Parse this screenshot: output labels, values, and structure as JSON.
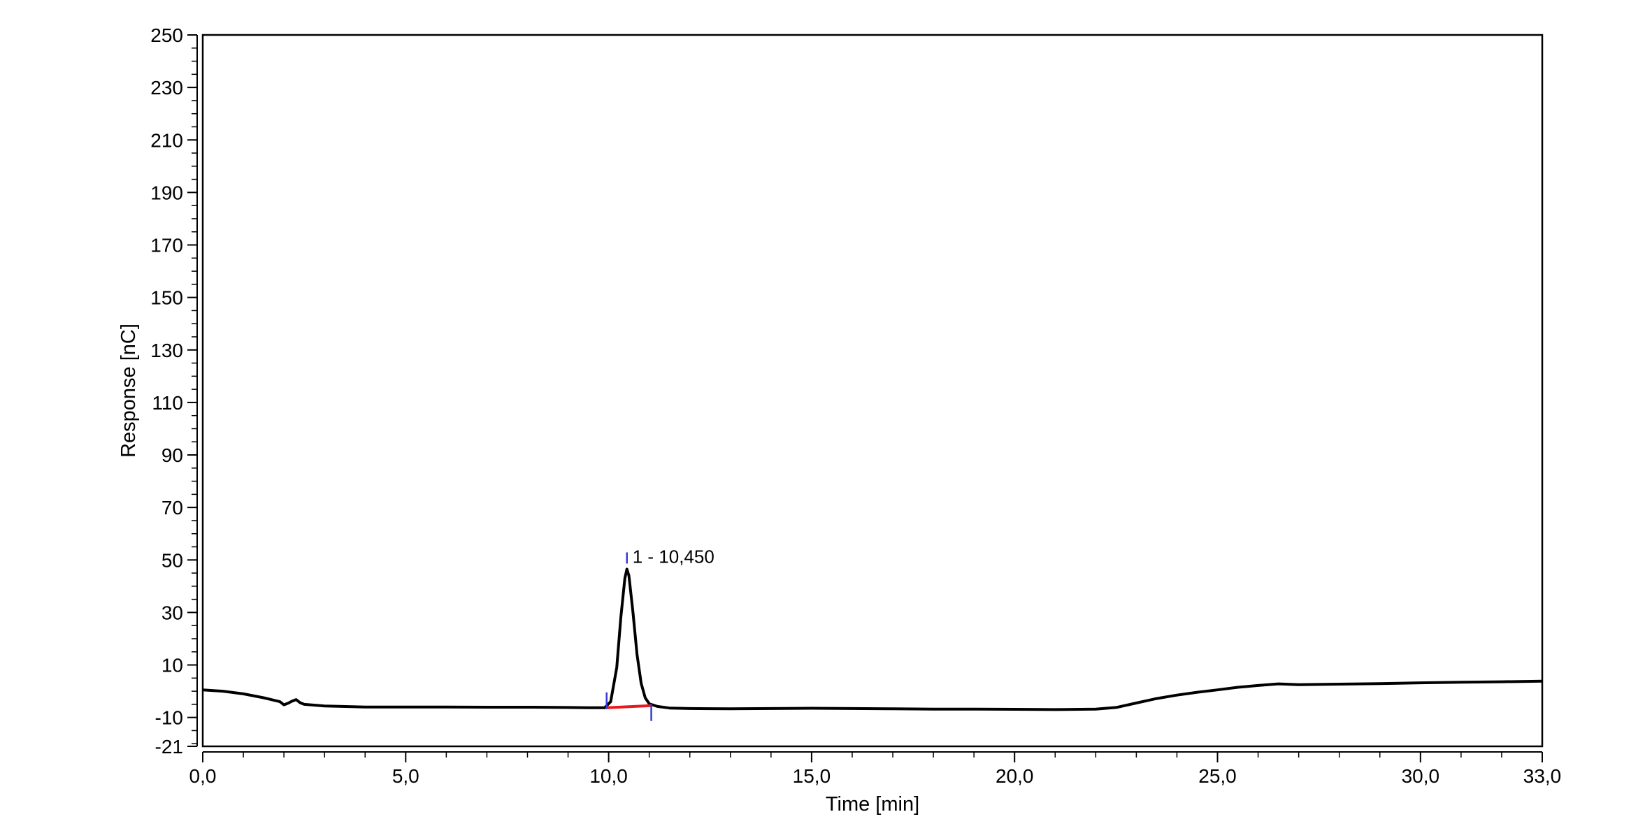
{
  "chart_data": {
    "type": "line",
    "xlabel": "Time [min]",
    "ylabel": "Response [nC]",
    "xlim": [
      0,
      33
    ],
    "ylim": [
      -21,
      250
    ],
    "x_ticks": [
      "0,0",
      "5,0",
      "10,0",
      "15,0",
      "20,0",
      "25,0",
      "30,0",
      "33,0"
    ],
    "y_ticks": [
      "-21",
      "-10",
      "10",
      "30",
      "50",
      "70",
      "90",
      "110",
      "130",
      "150",
      "170",
      "190",
      "210",
      "230",
      "250"
    ],
    "grid": false,
    "series": [
      {
        "color": "#000000",
        "x": [
          0.0,
          0.5,
          1.0,
          1.5,
          1.9,
          2.0,
          2.1,
          2.2,
          2.3,
          2.4,
          2.5,
          3.0,
          4.0,
          5.0,
          6.0,
          7.0,
          8.0,
          9.0,
          9.5,
          9.9,
          10.05,
          10.2,
          10.3,
          10.4,
          10.45,
          10.5,
          10.6,
          10.7,
          10.8,
          10.9,
          11.0,
          11.2,
          11.5,
          12.0,
          13.0,
          14.0,
          15.0,
          16.0,
          17.0,
          18.0,
          19.0,
          20.0,
          21.0,
          22.0,
          22.5,
          23.0,
          23.5,
          24.0,
          24.5,
          25.0,
          25.5,
          26.0,
          26.5,
          27.0,
          28.0,
          29.0,
          30.0,
          31.0,
          32.0,
          33.0
        ],
        "y": [
          0.5,
          0.0,
          -1.0,
          -2.5,
          -4.0,
          -5.2,
          -4.6,
          -3.8,
          -3.2,
          -4.4,
          -5.0,
          -5.6,
          -6.0,
          -6.0,
          -6.0,
          -6.1,
          -6.1,
          -6.2,
          -6.3,
          -6.3,
          -4.0,
          9.0,
          28.0,
          43.0,
          46.5,
          44.0,
          30.0,
          14.0,
          3.0,
          -2.5,
          -4.8,
          -5.8,
          -6.4,
          -6.6,
          -6.7,
          -6.6,
          -6.5,
          -6.6,
          -6.7,
          -6.8,
          -6.8,
          -6.9,
          -7.0,
          -6.8,
          -6.2,
          -4.5,
          -2.8,
          -1.5,
          -0.4,
          0.5,
          1.5,
          2.2,
          2.8,
          2.5,
          2.7,
          2.9,
          3.2,
          3.4,
          3.6,
          3.8
        ]
      }
    ],
    "baseline": {
      "color": "#e8191c",
      "x": [
        9.95,
        11.05
      ],
      "y": [
        -6.3,
        -5.5
      ]
    },
    "peak_markers": {
      "color": "#3a3ad6",
      "x": [
        9.95,
        10.45,
        11.05
      ]
    },
    "annotations": [
      {
        "text": "1 - 10,450",
        "x": 10.45,
        "y": 46.5
      }
    ]
  }
}
